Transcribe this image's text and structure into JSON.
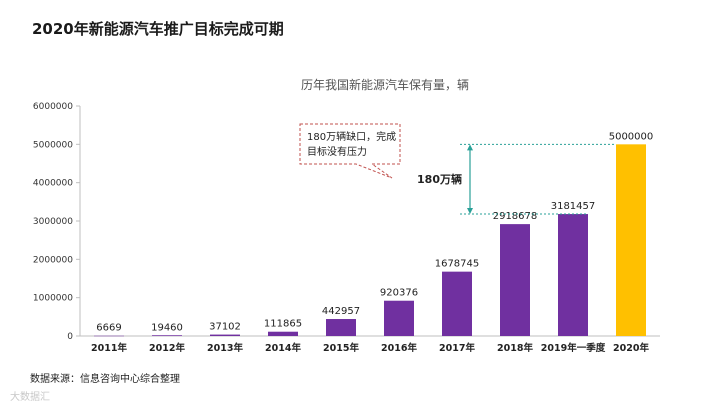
{
  "page": {
    "title": "2020年新能源汽车推广目标完成可期",
    "source": "数据来源：信息咨询中心综合整理",
    "watermark": "大数据汇"
  },
  "chart_data": {
    "type": "bar",
    "title": "历年我国新能源汽车保有量，辆",
    "categories": [
      "2011年",
      "2012年",
      "2013年",
      "2014年",
      "2015年",
      "2016年",
      "2017年",
      "2018年",
      "2019年一季度",
      "2020年"
    ],
    "series": [
      {
        "values": [
          6669,
          19460,
          37102,
          111865,
          442957,
          920376,
          1678745,
          2918678,
          3181457,
          5000000
        ]
      }
    ],
    "bar_colors": [
      "#7030a0",
      "#7030a0",
      "#7030a0",
      "#7030a0",
      "#7030a0",
      "#7030a0",
      "#7030a0",
      "#7030a0",
      "#7030a0",
      "#ffc000"
    ],
    "ylim": [
      0,
      6000000
    ],
    "yticks": [
      0,
      1000000,
      2000000,
      3000000,
      4000000,
      5000000,
      6000000
    ],
    "grid": false,
    "legend": "none",
    "annotations": {
      "callout_line1": "180万辆缺口，完成",
      "callout_line2": "目标没有压力",
      "gap_label": "180万辆",
      "gap_from": 3181457,
      "gap_to": 5000000,
      "callout_color": "#c0504d",
      "gap_arrow_color": "#2aa198"
    }
  }
}
